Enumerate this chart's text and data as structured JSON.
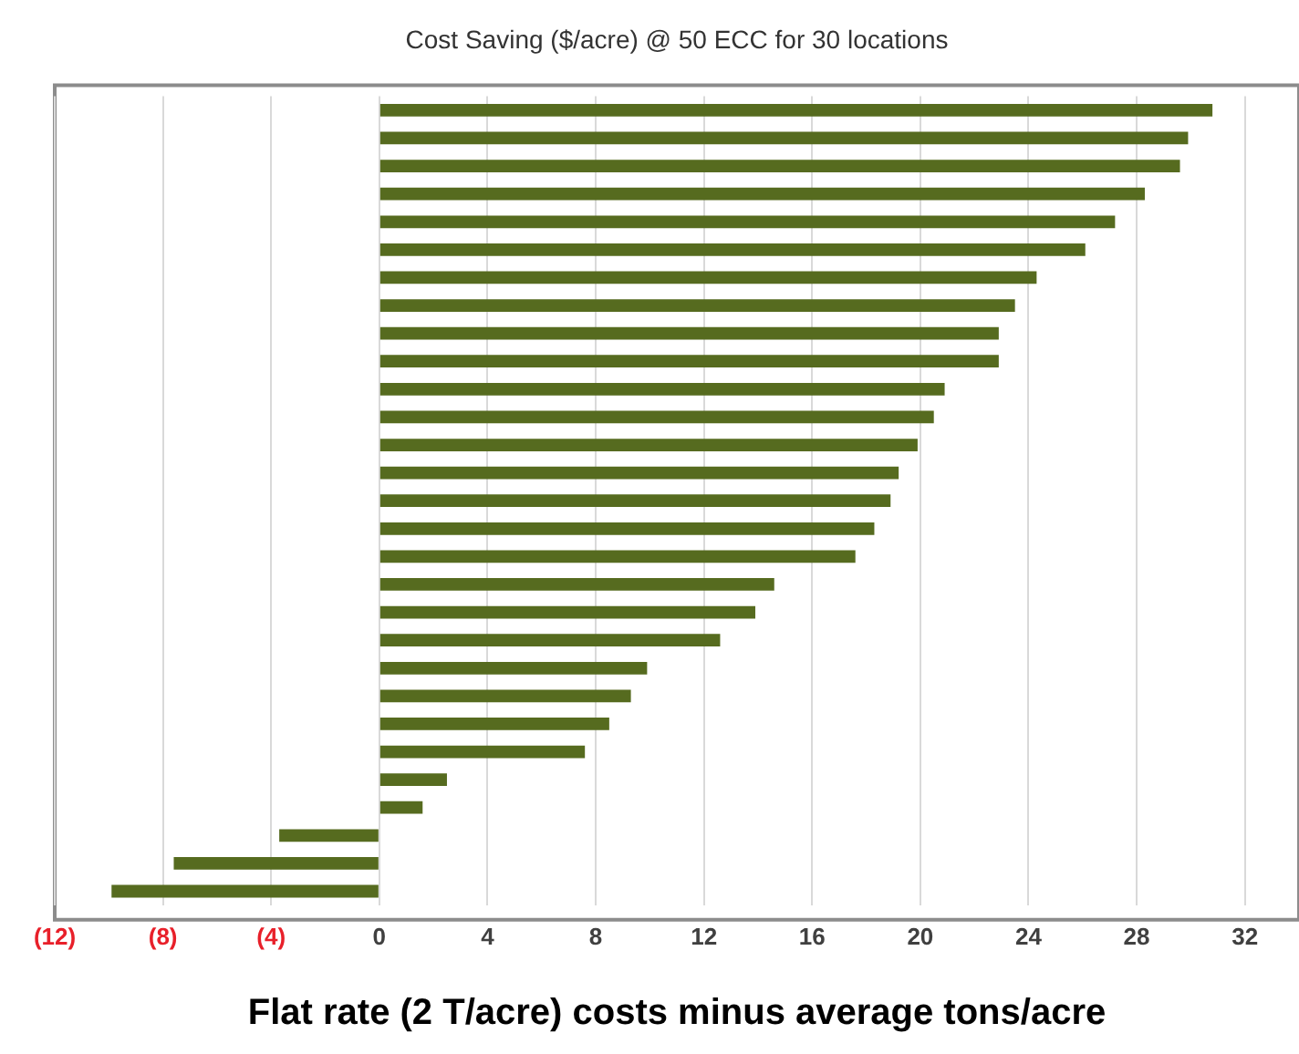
{
  "chart_data": {
    "type": "bar",
    "orientation": "horizontal",
    "title": "Cost Saving ($/acre) @ 50 ECC for 30 locations",
    "xlabel": "Flat rate (2 T/acre) costs minus average tons/acre",
    "categories": [
      null,
      null,
      null,
      null,
      null,
      null,
      null,
      null,
      null,
      null,
      null,
      null,
      null,
      null,
      null,
      null,
      null,
      null,
      null,
      null,
      null,
      null,
      null,
      null,
      null,
      null,
      null,
      null,
      null
    ],
    "values": [
      30.8,
      29.9,
      29.6,
      28.3,
      27.2,
      26.1,
      24.3,
      23.5,
      22.9,
      22.9,
      20.9,
      20.5,
      19.9,
      19.2,
      18.9,
      18.3,
      17.6,
      14.6,
      13.9,
      12.6,
      9.9,
      9.3,
      8.5,
      7.6,
      2.5,
      1.6,
      -3.7,
      -7.6,
      -9.9
    ],
    "color": "#566b1f",
    "xlim": [
      -12,
      34
    ],
    "xticks": [
      {
        "value": -12,
        "label": "(12)"
      },
      {
        "value": -8,
        "label": "(8)"
      },
      {
        "value": -4,
        "label": "(4)"
      },
      0,
      4,
      8,
      12,
      16,
      20,
      24,
      28,
      32
    ],
    "grid": "x",
    "tick_labels": "x"
  }
}
